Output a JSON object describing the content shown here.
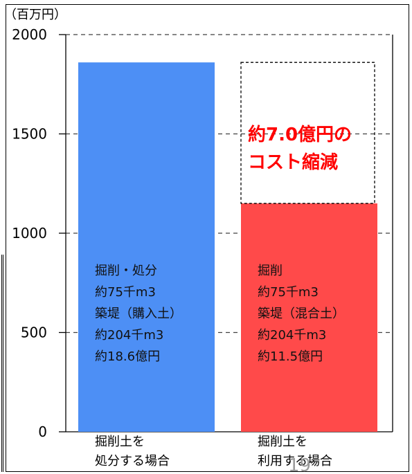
{
  "chart_data": {
    "type": "bar",
    "unit_label": "（百万円）",
    "ylim": [
      0,
      2000
    ],
    "yticks": [
      0,
      500,
      1000,
      1500,
      2000
    ],
    "grid": true,
    "categories": [
      [
        "掘削土を",
        "処分する場合"
      ],
      [
        "掘削土を",
        "利用する場合"
      ]
    ],
    "values": [
      1860,
      1150
    ],
    "bar_colors": [
      "#4d8ff5",
      "#ff4a4a"
    ],
    "bar_notes": [
      [
        "掘削・処分",
        "約75千m3",
        "築堤（購入土）",
        "約204千m3",
        "約18.6億円"
      ],
      [
        "掘削",
        "約75千m3",
        "築堤（混合土）",
        "約204千m3",
        "約11.5億円"
      ]
    ],
    "reduction": {
      "from": 1150,
      "to": 1860,
      "lines": [
        "約7.0億円の",
        "コスト縮減"
      ],
      "color": "#ff0000"
    },
    "page_number": "19"
  }
}
